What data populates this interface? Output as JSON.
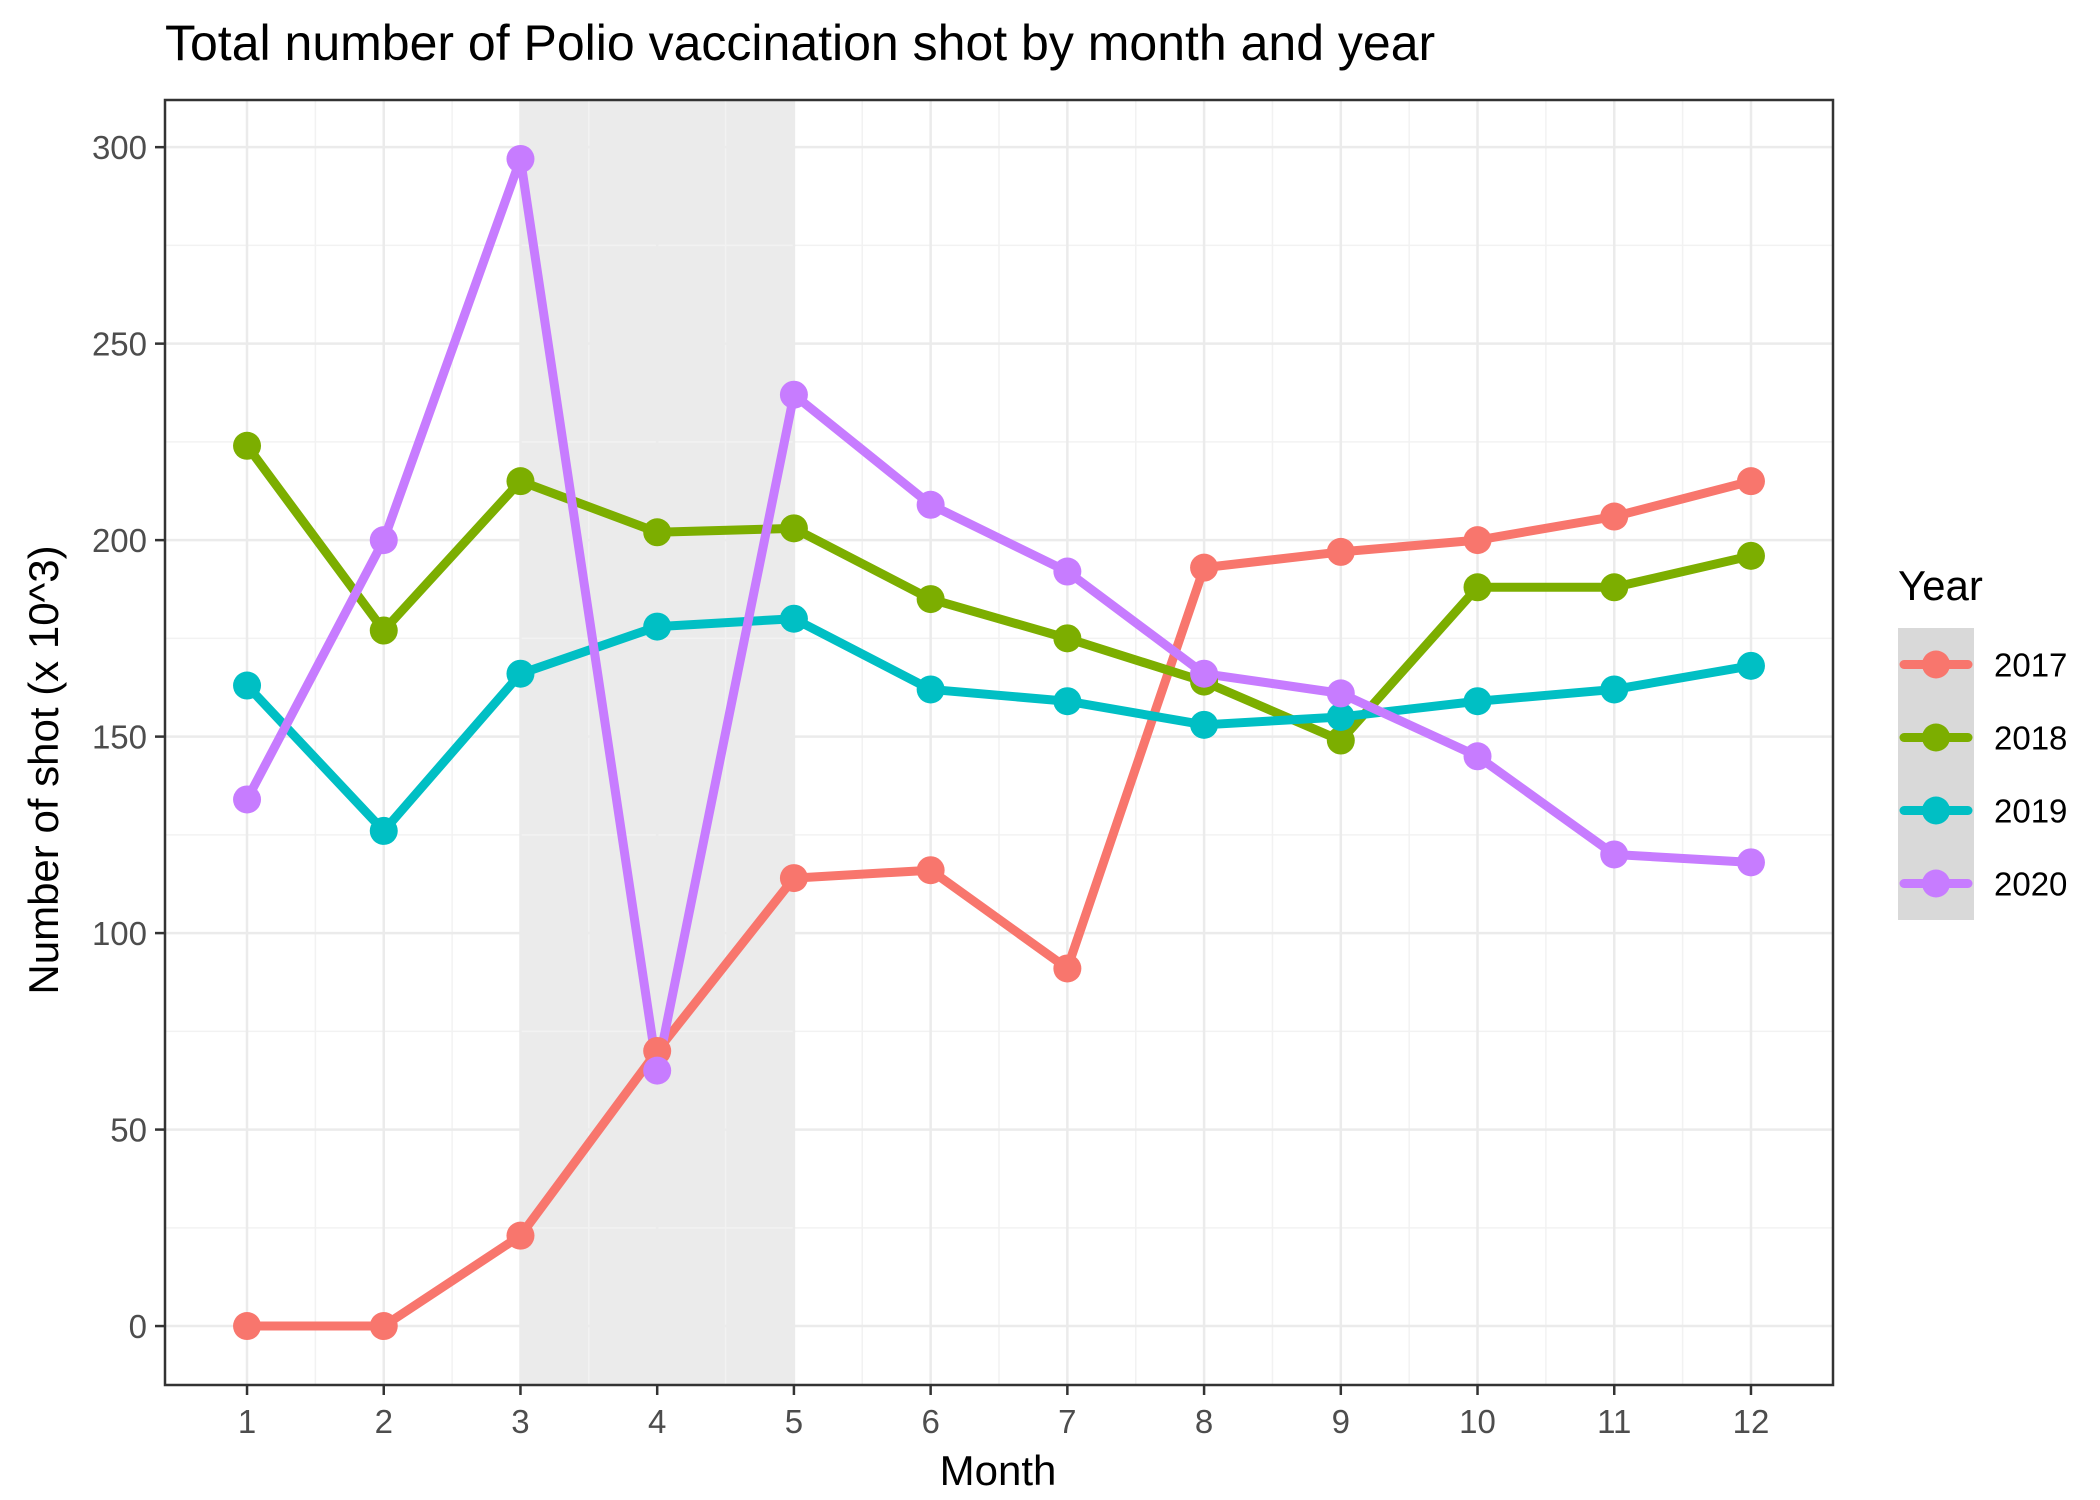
{
  "chart_data": {
    "type": "line",
    "title": "Total number of Polio vaccination shot by month and year",
    "xlabel": "Month",
    "ylabel": "Number of shot (x 10^3)",
    "xlim": [
      0.4,
      12.6
    ],
    "ylim": [
      -15,
      312
    ],
    "grid": true,
    "x_ticks": [
      1,
      2,
      3,
      4,
      5,
      6,
      7,
      8,
      9,
      10,
      11,
      12
    ],
    "y_ticks": [
      0,
      50,
      100,
      150,
      200,
      250,
      300
    ],
    "highlight_region": {
      "x_start": 3,
      "x_end": 5,
      "color": "#ebebeb"
    },
    "legend": {
      "title": "Year",
      "position": "right"
    },
    "x": [
      1,
      2,
      3,
      4,
      5,
      6,
      7,
      8,
      9,
      10,
      11,
      12
    ],
    "series": [
      {
        "name": "2017",
        "color": "#F8766D",
        "values": [
          0,
          0,
          23,
          70,
          114,
          116,
          91,
          193,
          197,
          200,
          206,
          215
        ]
      },
      {
        "name": "2018",
        "color": "#7CAE00",
        "values": [
          224,
          177,
          215,
          202,
          203,
          185,
          175,
          164,
          149,
          188,
          188,
          196
        ]
      },
      {
        "name": "2019",
        "color": "#00BFC4",
        "values": [
          163,
          126,
          166,
          178,
          180,
          162,
          159,
          153,
          155,
          159,
          162,
          168
        ]
      },
      {
        "name": "2020",
        "color": "#C77CFF",
        "values": [
          134,
          200,
          297,
          65,
          237,
          209,
          192,
          166,
          161,
          145,
          120,
          118
        ]
      }
    ]
  }
}
